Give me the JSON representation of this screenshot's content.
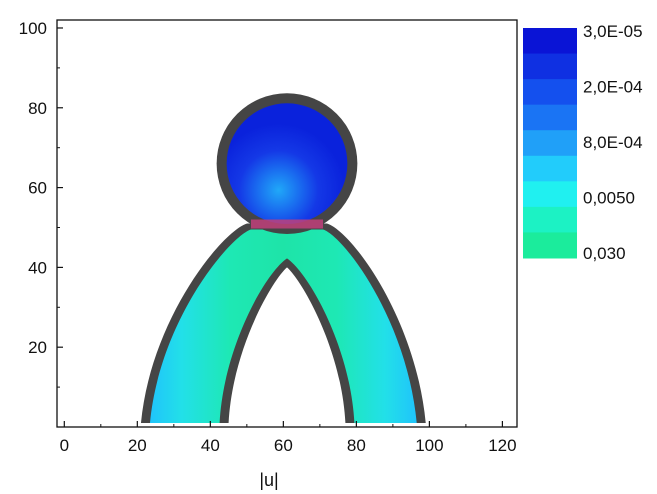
{
  "chart_data": {
    "type": "heatmap",
    "title": "",
    "xlabel": "|u|",
    "ylabel": "",
    "xlim": [
      -2,
      124
    ],
    "ylim": [
      0,
      102
    ],
    "x_ticks": [
      0,
      20,
      40,
      60,
      80,
      100,
      120
    ],
    "y_ticks": [
      20,
      40,
      60,
      80,
      100
    ],
    "x_tick_labels": [
      "0",
      "20",
      "40",
      "60",
      "80",
      "100",
      "120"
    ],
    "y_tick_labels": [
      "20",
      "40",
      "60",
      "80",
      "100"
    ],
    "grid": false,
    "colorbar": {
      "position": "right",
      "labels": [
        "3,0E-05",
        "2,0E-04",
        "8,0E-04",
        "0,0050",
        "0,030"
      ],
      "levels": [
        "#0a14d6",
        "#0f30e2",
        "#1450ee",
        "#1a74f4",
        "#20a0f8",
        "#22ccfb",
        "#20f0f0",
        "#1cf2c4",
        "#1bec9c"
      ]
    },
    "geometry": {
      "wall_color": "#454545",
      "throat_color": "#c0407a",
      "bulb": {
        "center_x": 61,
        "center_y": 66,
        "radius": 19
      },
      "throat_y": 51,
      "arch_outer": {
        "left_x": 21,
        "right_x": 99,
        "base_y": 1
      },
      "arch_inner": {
        "left_x": 45,
        "right_x": 77,
        "apex_x": 61,
        "apex_y": 40
      }
    },
    "colors": {
      "bulb_fill": "#0a22dc",
      "bulb_core": "#1a70f0",
      "arm_fill": "#1ee8b4",
      "arm_edge": "#20c4fb"
    }
  }
}
